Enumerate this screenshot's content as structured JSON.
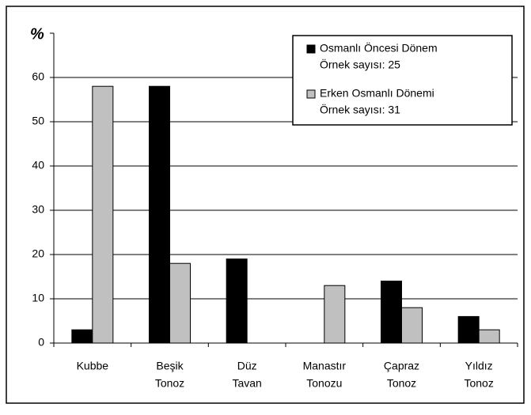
{
  "chart_data": {
    "type": "bar",
    "y_label": "%",
    "categories": [
      [
        "Kubbe"
      ],
      [
        "Beşik",
        "Tonoz"
      ],
      [
        "Düz",
        "Tavan"
      ],
      [
        "Manastır",
        "Tonozu"
      ],
      [
        "Çapraz",
        "Tonoz"
      ],
      [
        "Yıldız",
        "Tonoz"
      ]
    ],
    "series": [
      {
        "name": "Osmanlı Öncesi Dönem",
        "note": "Örnek sayısı: 25",
        "color": "#000000",
        "values": [
          3,
          58,
          19,
          0,
          14,
          6
        ]
      },
      {
        "name": "Erken Osmanlı Dönemi",
        "note": "Örnek sayısı: 31",
        "color": "#c0c0c0",
        "values": [
          58,
          18,
          0,
          13,
          8,
          3
        ]
      }
    ],
    "ylim": [
      0,
      70
    ],
    "yticks": [
      0,
      10,
      20,
      30,
      40,
      50,
      60
    ],
    "grid": true,
    "legend": "upper right"
  }
}
